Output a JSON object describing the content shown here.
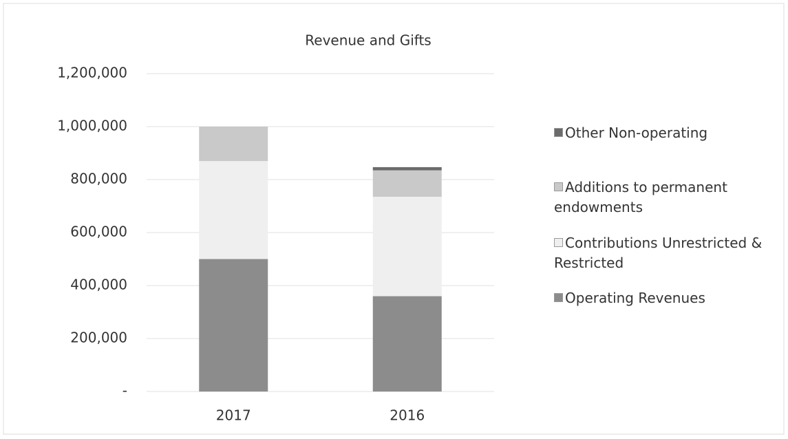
{
  "chart_data": {
    "type": "stacked_bar",
    "title": "Revenue and Gifts",
    "categories": [
      "2017",
      "2016"
    ],
    "series": [
      {
        "name": "Operating Revenues",
        "color": "#8c8c8c",
        "values": [
          500000,
          360000
        ]
      },
      {
        "name": "Contributions Unrestricted & Restricted",
        "color": "#efefef",
        "values": [
          370000,
          375000
        ]
      },
      {
        "name": "Additions to permanent endowments",
        "color": "#c9c9c9",
        "values": [
          130000,
          100000
        ]
      },
      {
        "name": "Other Non-operating",
        "color": "#6b6b6b",
        "values": [
          0,
          12000
        ]
      }
    ],
    "ylim": [
      0,
      1200000
    ],
    "yticks": [
      {
        "value": 0,
        "label": "-"
      },
      {
        "value": 200000,
        "label": "200,000"
      },
      {
        "value": 400000,
        "label": "400,000"
      },
      {
        "value": 600000,
        "label": "600,000"
      },
      {
        "value": 800000,
        "label": "800,000"
      },
      {
        "value": 1000000,
        "label": "1,000,000"
      },
      {
        "value": 1200000,
        "label": "1,200,000"
      }
    ],
    "grid": true,
    "legend": "right"
  }
}
